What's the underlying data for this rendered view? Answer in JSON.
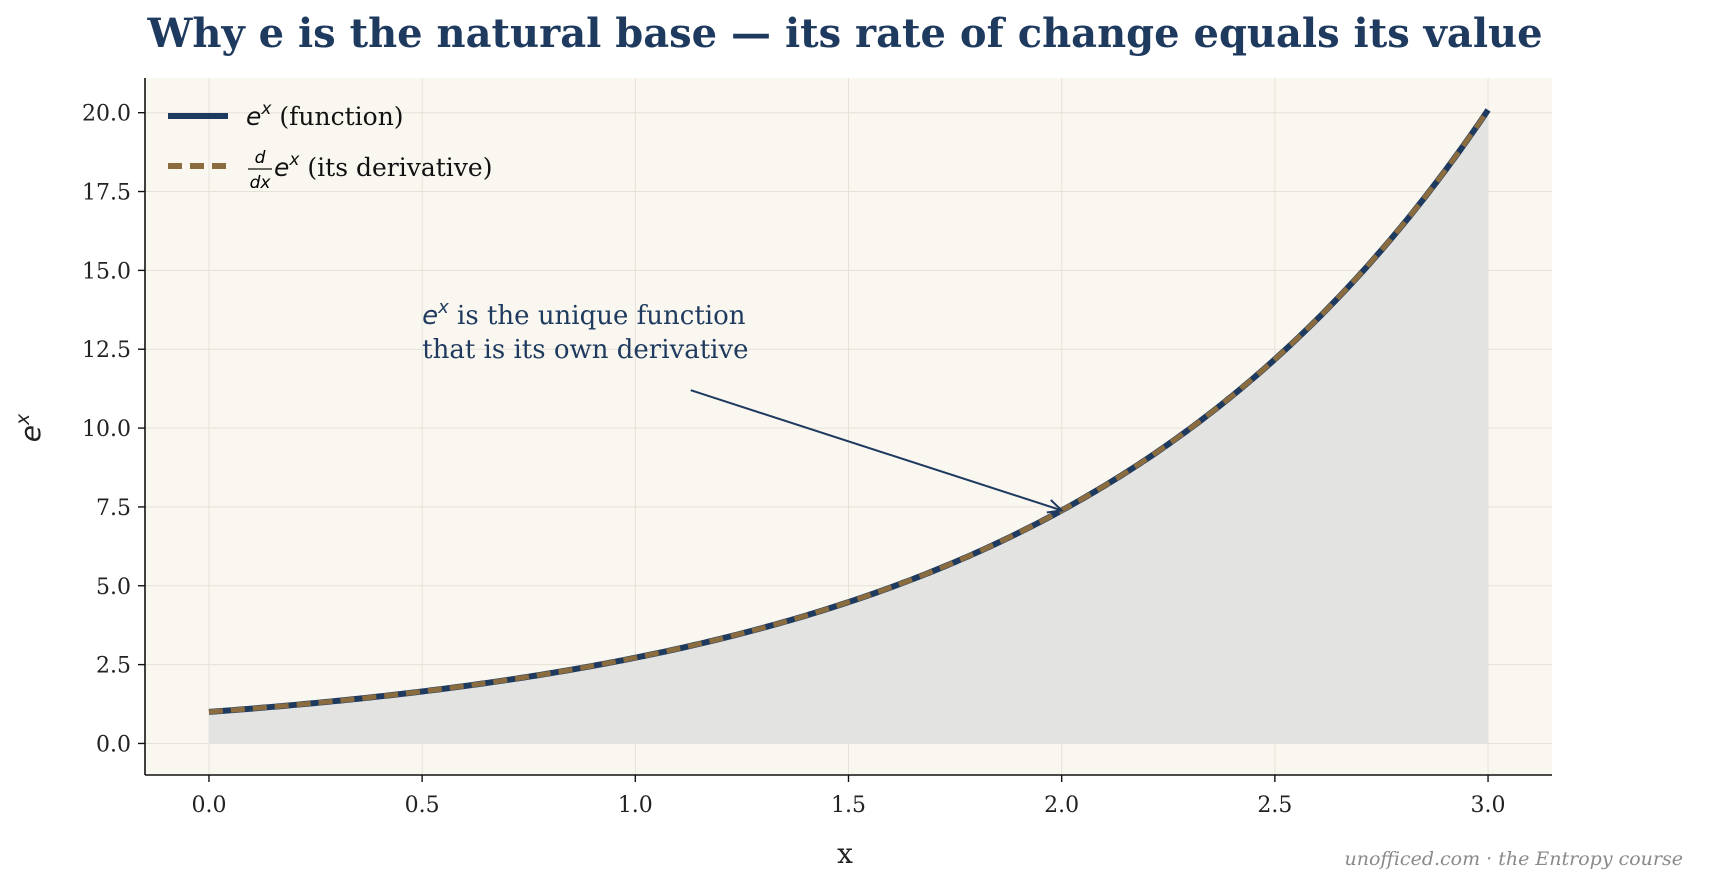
{
  "chart_data": {
    "type": "line",
    "title": "Why e is the natural base — its rate of change equals its value",
    "xlabel": "x",
    "ylabel": "e",
    "ylabel_superscript": "x",
    "xlim": [
      -0.15,
      3.15
    ],
    "ylim": [
      -1.0,
      21.1
    ],
    "xticks": [
      0.0,
      0.5,
      1.0,
      1.5,
      2.0,
      2.5,
      3.0
    ],
    "xtick_labels": [
      "0.0",
      "0.5",
      "1.0",
      "1.5",
      "2.0",
      "2.5",
      "3.0"
    ],
    "yticks": [
      0.0,
      2.5,
      5.0,
      7.5,
      10.0,
      12.5,
      15.0,
      17.5,
      20.0
    ],
    "ytick_labels": [
      "0.0",
      "2.5",
      "5.0",
      "7.5",
      "10.0",
      "12.5",
      "15.0",
      "17.5",
      "20.0"
    ],
    "grid": true,
    "legend_position": "top-left",
    "x": [
      0.0,
      0.25,
      0.5,
      0.75,
      1.0,
      1.25,
      1.5,
      1.75,
      2.0,
      2.25,
      2.5,
      2.75,
      3.0
    ],
    "series": [
      {
        "label_math": "e",
        "label_sup": "x",
        "label_suffix": " (function)",
        "style": "solid",
        "color": "#1f3a5f",
        "values": [
          1.0,
          1.284,
          1.649,
          2.117,
          2.718,
          3.49,
          4.482,
          5.755,
          7.389,
          9.488,
          12.182,
          15.643,
          20.086
        ]
      },
      {
        "label_frac_num": "d",
        "label_frac_den": "dx",
        "label_math": "e",
        "label_sup": "x",
        "label_suffix": " (its derivative)",
        "style": "dashed",
        "color": "#8b6c3e",
        "values": [
          1.0,
          1.284,
          1.649,
          2.117,
          2.718,
          3.49,
          4.482,
          5.755,
          7.389,
          9.488,
          12.182,
          15.643,
          20.086
        ]
      }
    ],
    "annotation": {
      "math": "e",
      "sup": "x",
      "line1_suffix": " is the unique function",
      "line2": "that is its own derivative",
      "text_x": 0.5,
      "text_y": 13.3,
      "arrow_start": [
        1.13,
        11.2
      ],
      "arrow_end": [
        2.0,
        7.39
      ]
    },
    "colors": {
      "plot_background": "#faf7f0",
      "fill_under_curve": "#e3e3e1",
      "title": "#1f3a5f"
    }
  },
  "credit": "unofficed.com · the Entropy course"
}
